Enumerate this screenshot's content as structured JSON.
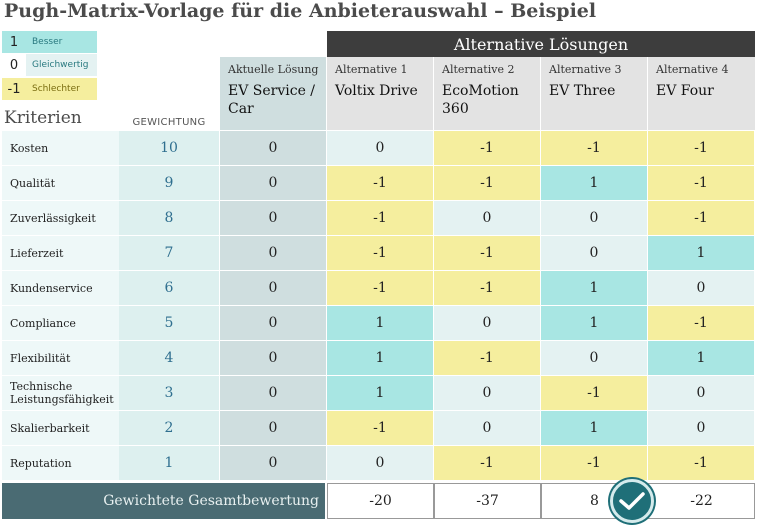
{
  "title": "Pugh-Matrix-Vorlage für die Anbieterauswahl – Beispiel",
  "legend": [
    {
      "value": "1",
      "label": "Besser",
      "color": "#a8e6e3"
    },
    {
      "value": "0",
      "label": "Gleichwertig",
      "color": "#e4f2f2"
    },
    {
      "value": "-1",
      "label": "Schlechter",
      "color": "#f5ee9e"
    }
  ],
  "headers": {
    "criteria": "Kriterien",
    "weight": "GEWICHTUNG",
    "alternatives_banner": "Alternative Lösungen",
    "current_sub": "Aktuelle Lösung",
    "current_name": "EV Service / Car"
  },
  "alternatives": [
    {
      "sub": "Alternative 1",
      "name": "Voltix Drive"
    },
    {
      "sub": "Alternative 2",
      "name": "EcoMotion 360"
    },
    {
      "sub": "Alternative 3",
      "name": "EV Three"
    },
    {
      "sub": "Alternative 4",
      "name": "EV Four"
    }
  ],
  "rows": [
    {
      "criterion": "Kosten",
      "weight": "10",
      "current": "0",
      "scores": [
        "0",
        "-1",
        "-1",
        "-1"
      ]
    },
    {
      "criterion": "Qualität",
      "weight": "9",
      "current": "0",
      "scores": [
        "-1",
        "-1",
        "1",
        "-1"
      ]
    },
    {
      "criterion": "Zuverlässigkeit",
      "weight": "8",
      "current": "0",
      "scores": [
        "-1",
        "0",
        "0",
        "-1"
      ]
    },
    {
      "criterion": "Lieferzeit",
      "weight": "7",
      "current": "0",
      "scores": [
        "-1",
        "-1",
        "0",
        "1"
      ]
    },
    {
      "criterion": "Kundenservice",
      "weight": "6",
      "current": "0",
      "scores": [
        "-1",
        "-1",
        "1",
        "0"
      ]
    },
    {
      "criterion": "Compliance",
      "weight": "5",
      "current": "0",
      "scores": [
        "1",
        "0",
        "1",
        "-1"
      ]
    },
    {
      "criterion": "Flexibilität",
      "weight": "4",
      "current": "0",
      "scores": [
        "1",
        "-1",
        "0",
        "1"
      ]
    },
    {
      "criterion": "Technische Leistungsfähigkeit",
      "weight": "3",
      "current": "0",
      "scores": [
        "1",
        "0",
        "-1",
        "0"
      ]
    },
    {
      "criterion": "Skalierbarkeit",
      "weight": "2",
      "current": "0",
      "scores": [
        "-1",
        "0",
        "1",
        "0"
      ]
    },
    {
      "criterion": "Reputation",
      "weight": "1",
      "current": "0",
      "scores": [
        "0",
        "-1",
        "-1",
        "-1"
      ]
    }
  ],
  "totals": {
    "label": "Gewichtete Gesamtbewertung",
    "values": [
      "-20",
      "-37",
      "8",
      "-22"
    ],
    "winner_icon": "check-circle-icon"
  }
}
